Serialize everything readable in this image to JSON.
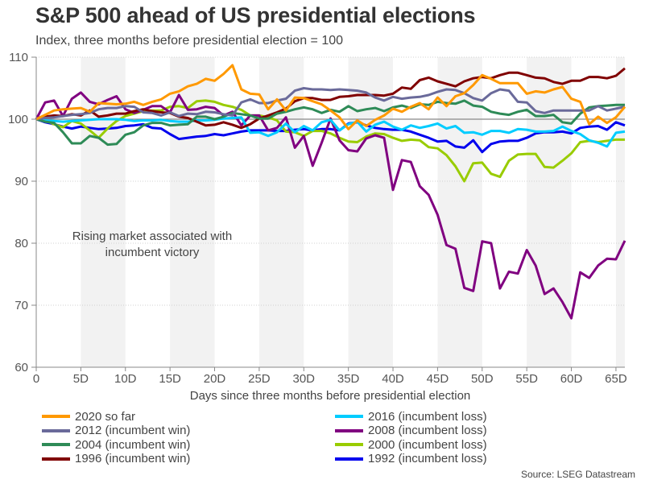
{
  "header": {
    "title": "S&P 500 ahead of US presidential elections",
    "subtitle": "Index, three months before presidential election = 100"
  },
  "source": "Source: LSEG Datastream",
  "chart_data": {
    "type": "line",
    "title": "S&P 500 ahead of US presidential elections",
    "subtitle": "Index, three months before presidential election = 100",
    "xlabel": "Days since three months before presidential election",
    "ylabel": "",
    "xlim": [
      0,
      66
    ],
    "ylim": [
      60,
      110
    ],
    "x_ticks": [
      0,
      5,
      10,
      15,
      20,
      25,
      30,
      35,
      40,
      45,
      50,
      55,
      60,
      65
    ],
    "x_tick_labels": [
      "0",
      "5D",
      "10D",
      "15D",
      "20D",
      "25D",
      "30D",
      "35D",
      "40D",
      "45D",
      "50D",
      "55D",
      "60D",
      "65D"
    ],
    "y_ticks": [
      60,
      70,
      80,
      90,
      100,
      110
    ],
    "y_tick_labels": [
      "60",
      "70",
      "80",
      "90",
      "100",
      "110"
    ],
    "grid": "horizontal dotted",
    "shaded_bands": [
      [
        5,
        10
      ],
      [
        15,
        20
      ],
      [
        25,
        30
      ],
      [
        35,
        40
      ],
      [
        45,
        50
      ],
      [
        55,
        60
      ],
      [
        65,
        66
      ]
    ],
    "reference_line": 100,
    "annotation": "Rising market associated with\nincumbent victory",
    "annotation_lines": [
      "Rising market associated with",
      "incumbent victory"
    ],
    "legend_position": "bottom",
    "series": [
      {
        "name": "2020 so far",
        "color": "#ff9900",
        "values": [
          100,
          100.7,
          101.4,
          101.6,
          101.7,
          101.8,
          101.2,
          102.6,
          102.5,
          102.4,
          102.5,
          102.8,
          102.3,
          102.8,
          103.2,
          104.1,
          104.5,
          105.3,
          105.7,
          106.5,
          106.2,
          107.3,
          108.7,
          104.8,
          104.1,
          104.0,
          101.6,
          103.2,
          101.4,
          103.5,
          103.4,
          102.9,
          102.4,
          101.4,
          100.3,
          98.4,
          99.8,
          98.9,
          99.9,
          100.6,
          101.7,
          101.2,
          102.0,
          102.6,
          101.6,
          103.5,
          102.1,
          103.7,
          104.2,
          105.5,
          107.1,
          106.5,
          105.8,
          105.8,
          105.8,
          104.1,
          104.5,
          104.3,
          104.8,
          105.2,
          103.3,
          102.8,
          99.2,
          100.4,
          99.4,
          100.3,
          102.0
        ]
      },
      {
        "name": "2012 (incumbent win)",
        "color": "#6a6a9a",
        "values": [
          100,
          100.2,
          100.3,
          100.5,
          100.7,
          100.8,
          101.0,
          101.6,
          101.8,
          101.8,
          102.1,
          102.0,
          101.1,
          101.0,
          100.6,
          101.1,
          100.5,
          100.9,
          100.8,
          101.2,
          101.1,
          100.8,
          100.6,
          102.7,
          103.2,
          102.6,
          102.6,
          103.0,
          103.3,
          104.6,
          105.0,
          104.8,
          104.8,
          104.7,
          104.8,
          104.7,
          104.6,
          104.3,
          103.5,
          103.0,
          103.6,
          103.3,
          103.5,
          103.6,
          103.9,
          104.4,
          104.8,
          104.7,
          104.2,
          103.4,
          103.0,
          104.2,
          104.8,
          104.6,
          102.8,
          102.7,
          101.3,
          101.0,
          101.4,
          101.4,
          101.4,
          101.4,
          101.4,
          102.1,
          101.4,
          101.7,
          102.0
        ]
      },
      {
        "name": "2004 (incumbent win)",
        "color": "#2e8b57",
        "values": [
          100,
          99.6,
          99.4,
          97.9,
          96.1,
          96.1,
          97.3,
          97.0,
          95.9,
          96.0,
          97.5,
          97.9,
          99.0,
          99.4,
          99.4,
          99.0,
          99.1,
          99.2,
          100.4,
          100.4,
          100.0,
          100.4,
          101.0,
          100.8,
          100.6,
          100.1,
          100.1,
          100.9,
          101.2,
          101.6,
          101.9,
          101.6,
          101.0,
          101.5,
          101.2,
          102.1,
          101.3,
          101.6,
          101.8,
          101.3,
          101.9,
          102.2,
          101.8,
          102.4,
          102.3,
          102.8,
          102.6,
          102.5,
          103.0,
          102.2,
          102.0,
          101.2,
          100.9,
          100.7,
          101.2,
          101.5,
          100.5,
          100.5,
          100.7,
          99.5,
          99.3,
          100.9,
          101.9,
          102.1,
          102.2,
          102.3,
          102.3
        ]
      },
      {
        "name": "1996 (incumbent win)",
        "color": "#800000",
        "values": [
          100,
          100.4,
          100.6,
          100.5,
          100.8,
          100.6,
          101.4,
          100.4,
          100.6,
          100.9,
          100.9,
          101.3,
          101.6,
          101.3,
          101.1,
          101.0,
          100.4,
          100.2,
          99.6,
          99.0,
          99.1,
          99.5,
          99.1,
          98.6,
          99.2,
          100.1,
          100.6,
          101.1,
          101.7,
          102.9,
          103.4,
          103.4,
          103.1,
          103.1,
          103.6,
          103.7,
          103.9,
          103.9,
          103.9,
          103.8,
          104.1,
          105.1,
          104.9,
          106.3,
          106.7,
          106.1,
          105.7,
          105.3,
          106.1,
          106.6,
          106.8,
          106.6,
          107.1,
          107.5,
          107.5,
          107.1,
          106.7,
          106.6,
          106.0,
          105.7,
          106.2,
          106.2,
          106.8,
          106.8,
          106.6,
          107.0,
          108.2
        ]
      },
      {
        "name": "2016 (incumbent loss)",
        "color": "#00ccff",
        "values": [
          100,
          99.8,
          99.7,
          99.6,
          99.7,
          99.8,
          99.9,
          100.0,
          100.0,
          100.0,
          99.9,
          99.7,
          99.8,
          99.8,
          99.9,
          99.7,
          99.6,
          99.6,
          99.8,
          99.8,
          99.9,
          100.1,
          100.2,
          100.3,
          97.8,
          97.9,
          97.3,
          97.9,
          99.3,
          97.9,
          98.9,
          98.2,
          99.5,
          99.9,
          98.2,
          99.2,
          99.6,
          98.0,
          99.1,
          99.6,
          98.8,
          98.3,
          99.0,
          98.6,
          98.9,
          99.3,
          98.5,
          98.9,
          97.8,
          97.9,
          97.5,
          98.1,
          98.1,
          97.8,
          98.4,
          98.3,
          98.0,
          98.0,
          98.1,
          98.8,
          98.1,
          97.6,
          96.6,
          96.2,
          95.6,
          97.8,
          98.0
        ]
      },
      {
        "name": "2008 (incumbent loss)",
        "color": "#800080",
        "values": [
          100,
          102.7,
          103.0,
          100.5,
          103.3,
          104.3,
          102.8,
          102.4,
          103.1,
          103.7,
          101.6,
          101.0,
          101.5,
          102.1,
          102.1,
          101.1,
          103.9,
          101.5,
          101.6,
          102.0,
          101.8,
          100.6,
          101.2,
          99.0,
          100.6,
          100.6,
          98.2,
          98.6,
          100.3,
          95.4,
          97.3,
          92.5,
          96.2,
          100.1,
          96.6,
          95.0,
          94.8,
          96.9,
          97.4,
          97.0,
          88.6,
          93.4,
          93.1,
          89.2,
          87.8,
          84.6,
          79.7,
          79.1,
          72.8,
          72.3,
          80.3,
          80.0,
          72.7,
          75.4,
          75.1,
          78.9,
          76.4,
          71.8,
          72.7,
          70.5,
          67.9,
          75.3,
          74.4,
          76.4,
          77.5,
          77.4,
          80.4
        ]
      },
      {
        "name": "2000 (incumbent loss)",
        "color": "#99cc00",
        "values": [
          100,
          99.8,
          99.2,
          98.7,
          99.7,
          99.3,
          98.2,
          97.0,
          98.5,
          99.7,
          100.5,
          100.9,
          101.3,
          101.4,
          101.4,
          102.0,
          102.1,
          101.8,
          102.9,
          103.0,
          102.8,
          102.3,
          102.0,
          101.5,
          100.6,
          100.6,
          100.3,
          99.8,
          98.0,
          97.9,
          97.3,
          98.1,
          98.1,
          97.7,
          97.0,
          96.4,
          96.3,
          97.2,
          97.7,
          97.6,
          97.0,
          96.5,
          96.7,
          96.6,
          95.5,
          95.3,
          94.2,
          92.4,
          90.0,
          92.9,
          93.0,
          91.2,
          90.7,
          93.3,
          94.3,
          94.4,
          94.4,
          92.3,
          92.2,
          93.3,
          94.5,
          96.3,
          96.5,
          96.3,
          96.5,
          96.7,
          96.7
        ]
      },
      {
        "name": "1992 (incumbent loss)",
        "color": "#0000ee",
        "values": [
          100,
          99.5,
          99.2,
          98.8,
          98.5,
          98.8,
          98.6,
          98.4,
          98.5,
          98.6,
          98.9,
          99.0,
          99.2,
          98.6,
          98.5,
          97.6,
          96.8,
          97.0,
          97.2,
          97.3,
          97.6,
          97.4,
          97.7,
          98.0,
          98.2,
          98.2,
          98.2,
          98.1,
          98.1,
          98.3,
          98.4,
          98.2,
          98.4,
          98.4,
          98.2,
          99.3,
          99.5,
          99.0,
          98.6,
          98.4,
          98.3,
          98.3,
          98.0,
          97.5,
          97.0,
          96.4,
          96.5,
          95.6,
          95.4,
          96.6,
          94.7,
          96.0,
          96.4,
          96.5,
          96.5,
          97.0,
          97.7,
          97.9,
          97.9,
          98.0,
          97.7,
          98.6,
          98.8,
          98.9,
          98.3,
          99.5,
          99.0
        ]
      }
    ]
  }
}
